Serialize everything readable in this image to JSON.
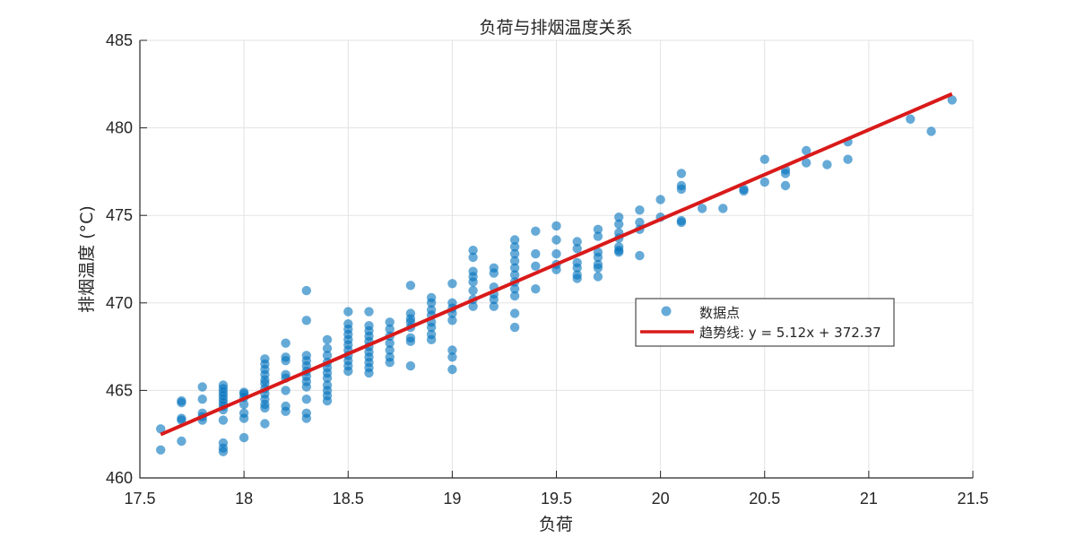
{
  "chart_data": {
    "type": "scatter",
    "title": "负荷与排烟温度关系",
    "xlabel": "负荷",
    "ylabel": "排烟温度 (°C)",
    "xlim": [
      17.5,
      21.5
    ],
    "ylim": [
      460,
      485
    ],
    "xticks": [
      17.5,
      18,
      18.5,
      19,
      19.5,
      20,
      20.5,
      21,
      21.5
    ],
    "xtick_labels": [
      "17.5",
      "18",
      "18.5",
      "19",
      "19.5",
      "20",
      "20.5",
      "21",
      "21.5"
    ],
    "yticks": [
      460,
      465,
      470,
      475,
      480,
      485
    ],
    "ytick_labels": [
      "460",
      "465",
      "470",
      "475",
      "480",
      "485"
    ],
    "grid": true,
    "legend": {
      "position": "inside-right",
      "entries": [
        {
          "label": "数据点",
          "marker": "circle",
          "color": "#0072BD"
        },
        {
          "label": "趋势线: y = 5.12x + 372.37",
          "marker": "line",
          "color": "#D91A1A"
        }
      ]
    },
    "series": [
      {
        "name": "数据点",
        "kind": "scatter",
        "color": "#0072BD",
        "alpha": 0.6,
        "points": [
          [
            17.6,
            462.8
          ],
          [
            17.6,
            461.6
          ],
          [
            17.7,
            464.4
          ],
          [
            17.7,
            464.3
          ],
          [
            17.7,
            463.4
          ],
          [
            17.7,
            463.3
          ],
          [
            17.7,
            462.1
          ],
          [
            17.8,
            465.2
          ],
          [
            17.8,
            464.5
          ],
          [
            17.8,
            463.7
          ],
          [
            17.8,
            463.5
          ],
          [
            17.8,
            463.3
          ],
          [
            17.9,
            465.3
          ],
          [
            17.9,
            465.1
          ],
          [
            17.9,
            464.9
          ],
          [
            17.9,
            464.7
          ],
          [
            17.9,
            464.5
          ],
          [
            17.9,
            464.3
          ],
          [
            17.9,
            464.1
          ],
          [
            17.9,
            463.9
          ],
          [
            17.9,
            463.3
          ],
          [
            17.9,
            462.0
          ],
          [
            17.9,
            461.7
          ],
          [
            17.9,
            461.5
          ],
          [
            18.0,
            464.9
          ],
          [
            18.0,
            464.8
          ],
          [
            18.0,
            464.6
          ],
          [
            18.0,
            464.2
          ],
          [
            18.0,
            463.7
          ],
          [
            18.0,
            463.4
          ],
          [
            18.0,
            462.3
          ],
          [
            18.1,
            466.8
          ],
          [
            18.1,
            466.5
          ],
          [
            18.1,
            466.2
          ],
          [
            18.1,
            465.9
          ],
          [
            18.1,
            465.6
          ],
          [
            18.1,
            465.4
          ],
          [
            18.1,
            465.1
          ],
          [
            18.1,
            464.8
          ],
          [
            18.1,
            464.5
          ],
          [
            18.1,
            464.2
          ],
          [
            18.1,
            464.0
          ],
          [
            18.1,
            463.1
          ],
          [
            18.2,
            467.7
          ],
          [
            18.2,
            466.9
          ],
          [
            18.2,
            466.7
          ],
          [
            18.2,
            465.9
          ],
          [
            18.2,
            465.7
          ],
          [
            18.2,
            465.0
          ],
          [
            18.2,
            464.1
          ],
          [
            18.2,
            463.8
          ],
          [
            18.3,
            470.7
          ],
          [
            18.3,
            469.0
          ],
          [
            18.3,
            467.0
          ],
          [
            18.3,
            466.7
          ],
          [
            18.3,
            466.4
          ],
          [
            18.3,
            466.1
          ],
          [
            18.3,
            465.8
          ],
          [
            18.3,
            465.5
          ],
          [
            18.3,
            465.2
          ],
          [
            18.3,
            464.5
          ],
          [
            18.3,
            463.7
          ],
          [
            18.3,
            463.4
          ],
          [
            18.4,
            467.9
          ],
          [
            18.4,
            467.4
          ],
          [
            18.4,
            467.0
          ],
          [
            18.4,
            466.6
          ],
          [
            18.4,
            466.3
          ],
          [
            18.4,
            466.0
          ],
          [
            18.4,
            465.7
          ],
          [
            18.4,
            465.3
          ],
          [
            18.4,
            465.0
          ],
          [
            18.4,
            464.7
          ],
          [
            18.4,
            464.4
          ],
          [
            18.5,
            469.5
          ],
          [
            18.5,
            468.8
          ],
          [
            18.5,
            468.5
          ],
          [
            18.5,
            468.2
          ],
          [
            18.5,
            467.9
          ],
          [
            18.5,
            467.6
          ],
          [
            18.5,
            467.3
          ],
          [
            18.5,
            467.0
          ],
          [
            18.5,
            466.7
          ],
          [
            18.5,
            466.4
          ],
          [
            18.5,
            466.1
          ],
          [
            18.6,
            469.5
          ],
          [
            18.6,
            468.7
          ],
          [
            18.6,
            468.4
          ],
          [
            18.6,
            468.1
          ],
          [
            18.6,
            467.8
          ],
          [
            18.6,
            467.5
          ],
          [
            18.6,
            467.2
          ],
          [
            18.6,
            466.9
          ],
          [
            18.6,
            466.6
          ],
          [
            18.6,
            466.3
          ],
          [
            18.6,
            466.0
          ],
          [
            18.7,
            468.9
          ],
          [
            18.7,
            468.5
          ],
          [
            18.7,
            468.1
          ],
          [
            18.7,
            467.7
          ],
          [
            18.7,
            467.3
          ],
          [
            18.7,
            466.9
          ],
          [
            18.7,
            466.6
          ],
          [
            18.8,
            471.0
          ],
          [
            18.8,
            469.4
          ],
          [
            18.8,
            469.1
          ],
          [
            18.8,
            468.9
          ],
          [
            18.8,
            468.6
          ],
          [
            18.8,
            468.0
          ],
          [
            18.8,
            467.8
          ],
          [
            18.8,
            466.4
          ],
          [
            18.9,
            470.3
          ],
          [
            18.9,
            470.0
          ],
          [
            18.9,
            469.6
          ],
          [
            18.9,
            469.3
          ],
          [
            18.9,
            468.9
          ],
          [
            18.9,
            468.6
          ],
          [
            18.9,
            468.2
          ],
          [
            18.9,
            467.9
          ],
          [
            19.0,
            471.1
          ],
          [
            19.0,
            470.0
          ],
          [
            19.0,
            469.7
          ],
          [
            19.0,
            469.4
          ],
          [
            19.0,
            469.0
          ],
          [
            19.0,
            467.3
          ],
          [
            19.0,
            466.9
          ],
          [
            19.0,
            466.2
          ],
          [
            19.1,
            473.0
          ],
          [
            19.1,
            472.6
          ],
          [
            19.1,
            471.8
          ],
          [
            19.1,
            471.5
          ],
          [
            19.1,
            471.2
          ],
          [
            19.1,
            470.7
          ],
          [
            19.1,
            470.2
          ],
          [
            19.1,
            469.8
          ],
          [
            19.2,
            472.0
          ],
          [
            19.2,
            471.7
          ],
          [
            19.2,
            470.9
          ],
          [
            19.2,
            470.5
          ],
          [
            19.2,
            470.2
          ],
          [
            19.2,
            469.8
          ],
          [
            19.3,
            473.6
          ],
          [
            19.3,
            473.2
          ],
          [
            19.3,
            472.8
          ],
          [
            19.3,
            472.4
          ],
          [
            19.3,
            472.0
          ],
          [
            19.3,
            471.6
          ],
          [
            19.3,
            471.2
          ],
          [
            19.3,
            470.8
          ],
          [
            19.3,
            470.4
          ],
          [
            19.3,
            469.4
          ],
          [
            19.3,
            468.6
          ],
          [
            19.4,
            474.1
          ],
          [
            19.4,
            472.8
          ],
          [
            19.4,
            472.1
          ],
          [
            19.4,
            470.8
          ],
          [
            19.5,
            474.4
          ],
          [
            19.5,
            473.6
          ],
          [
            19.5,
            472.8
          ],
          [
            19.5,
            472.2
          ],
          [
            19.5,
            471.9
          ],
          [
            19.6,
            473.5
          ],
          [
            19.6,
            473.1
          ],
          [
            19.6,
            472.3
          ],
          [
            19.6,
            472.0
          ],
          [
            19.6,
            471.6
          ],
          [
            19.6,
            471.4
          ],
          [
            19.7,
            474.2
          ],
          [
            19.7,
            473.8
          ],
          [
            19.7,
            472.9
          ],
          [
            19.7,
            472.6
          ],
          [
            19.7,
            472.2
          ],
          [
            19.7,
            472.0
          ],
          [
            19.7,
            471.5
          ],
          [
            19.8,
            474.9
          ],
          [
            19.8,
            474.5
          ],
          [
            19.8,
            474.0
          ],
          [
            19.8,
            473.7
          ],
          [
            19.8,
            473.2
          ],
          [
            19.8,
            473.0
          ],
          [
            19.8,
            472.9
          ],
          [
            19.9,
            475.3
          ],
          [
            19.9,
            474.6
          ],
          [
            19.9,
            474.2
          ],
          [
            19.9,
            472.7
          ],
          [
            20.0,
            475.9
          ],
          [
            20.0,
            474.9
          ],
          [
            20.1,
            477.4
          ],
          [
            20.1,
            476.7
          ],
          [
            20.1,
            476.5
          ],
          [
            20.1,
            474.7
          ],
          [
            20.1,
            474.6
          ],
          [
            20.2,
            475.4
          ],
          [
            20.3,
            475.4
          ],
          [
            20.4,
            476.5
          ],
          [
            20.4,
            476.4
          ],
          [
            20.5,
            478.2
          ],
          [
            20.5,
            476.9
          ],
          [
            20.6,
            477.6
          ],
          [
            20.6,
            477.4
          ],
          [
            20.6,
            476.7
          ],
          [
            20.7,
            478.7
          ],
          [
            20.7,
            478.0
          ],
          [
            20.8,
            477.9
          ],
          [
            20.9,
            479.2
          ],
          [
            20.9,
            478.2
          ],
          [
            21.2,
            480.5
          ],
          [
            21.3,
            479.8
          ],
          [
            21.4,
            481.6
          ]
        ]
      },
      {
        "name": "趋势线",
        "kind": "line",
        "color": "#D91A1A",
        "equation": "y = 5.12x + 372.37",
        "slope": 5.12,
        "intercept": 372.37,
        "x_range": [
          17.6,
          21.4
        ]
      }
    ]
  }
}
